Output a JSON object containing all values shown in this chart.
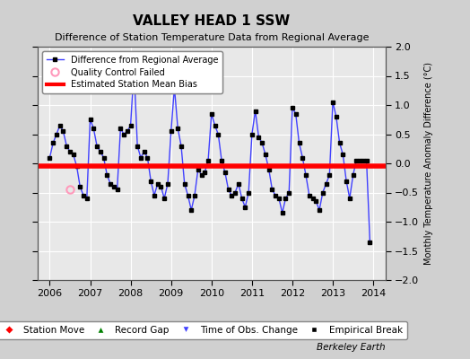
{
  "title": "VALLEY HEAD 1 SSW",
  "subtitle": "Difference of Station Temperature Data from Regional Average",
  "ylabel": "Monthly Temperature Anomaly Difference (°C)",
  "bias_value": -0.05,
  "xlim": [
    2005.7,
    2014.3
  ],
  "ylim": [
    -2.0,
    2.0
  ],
  "yticks": [
    -2,
    -1.5,
    -1,
    -0.5,
    0,
    0.5,
    1,
    1.5,
    2
  ],
  "xtick_years": [
    2006,
    2007,
    2008,
    2009,
    2010,
    2011,
    2012,
    2013,
    2014
  ],
  "background_color": "#e8e8e8",
  "fig_background_color": "#d0d0d0",
  "grid_color": "#ffffff",
  "line_color": "#4040ff",
  "marker_color": "#000000",
  "bias_color": "#ff0000",
  "qc_marker_color": "#ff99bb",
  "watermark": "Berkeley Earth",
  "series_x": [
    2006.0,
    2006.083,
    2006.167,
    2006.25,
    2006.333,
    2006.417,
    2006.5,
    2006.583,
    2006.667,
    2006.75,
    2006.833,
    2006.917,
    2007.0,
    2007.083,
    2007.167,
    2007.25,
    2007.333,
    2007.417,
    2007.5,
    2007.583,
    2007.667,
    2007.75,
    2007.833,
    2007.917,
    2008.0,
    2008.083,
    2008.167,
    2008.25,
    2008.333,
    2008.417,
    2008.5,
    2008.583,
    2008.667,
    2008.75,
    2008.833,
    2008.917,
    2009.0,
    2009.083,
    2009.167,
    2009.25,
    2009.333,
    2009.417,
    2009.5,
    2009.583,
    2009.667,
    2009.75,
    2009.833,
    2009.917,
    2010.0,
    2010.083,
    2010.167,
    2010.25,
    2010.333,
    2010.417,
    2010.5,
    2010.583,
    2010.667,
    2010.75,
    2010.833,
    2010.917,
    2011.0,
    2011.083,
    2011.167,
    2011.25,
    2011.333,
    2011.417,
    2011.5,
    2011.583,
    2011.667,
    2011.75,
    2011.833,
    2011.917,
    2012.0,
    2012.083,
    2012.167,
    2012.25,
    2012.333,
    2012.417,
    2012.5,
    2012.583,
    2012.667,
    2012.75,
    2012.833,
    2012.917,
    2013.0,
    2013.083,
    2013.167,
    2013.25,
    2013.333,
    2013.417,
    2013.5,
    2013.583,
    2013.667,
    2013.75,
    2013.833,
    2013.917
  ],
  "series_y": [
    0.1,
    0.35,
    0.5,
    0.65,
    0.55,
    0.3,
    0.2,
    0.15,
    -0.05,
    -0.4,
    -0.55,
    -0.6,
    0.75,
    0.6,
    0.3,
    0.2,
    0.1,
    -0.2,
    -0.35,
    -0.4,
    -0.45,
    0.6,
    0.5,
    0.55,
    0.65,
    1.65,
    0.3,
    0.1,
    0.2,
    0.1,
    -0.3,
    -0.55,
    -0.35,
    -0.4,
    -0.6,
    -0.35,
    0.55,
    1.3,
    0.6,
    0.3,
    -0.35,
    -0.55,
    -0.8,
    -0.55,
    -0.1,
    -0.2,
    -0.15,
    0.05,
    0.85,
    0.65,
    0.5,
    0.05,
    -0.15,
    -0.45,
    -0.55,
    -0.5,
    -0.35,
    -0.6,
    -0.75,
    -0.5,
    0.5,
    0.9,
    0.45,
    0.35,
    0.15,
    -0.1,
    -0.45,
    -0.55,
    -0.6,
    -0.85,
    -0.6,
    -0.5,
    0.95,
    0.85,
    0.35,
    0.1,
    -0.2,
    -0.55,
    -0.6,
    -0.65,
    -0.8,
    -0.5,
    -0.35,
    -0.2,
    1.05,
    0.8,
    0.35,
    0.15,
    -0.3,
    -0.6,
    -0.2,
    0.05,
    0.05,
    0.05,
    0.05,
    -1.35
  ],
  "qc_failed_x": [
    2006.5
  ],
  "qc_failed_y": [
    -0.45
  ]
}
